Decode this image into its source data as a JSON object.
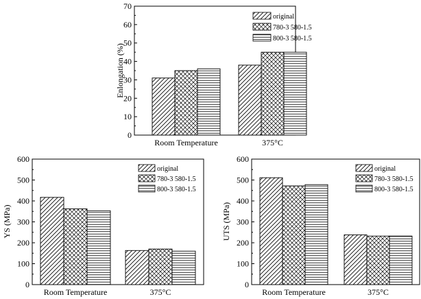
{
  "chart_data": [
    {
      "id": "enlongation",
      "type": "bar",
      "title": "",
      "xlabel": "",
      "ylabel": "Enlongation (%)",
      "ylim": [
        0,
        70
      ],
      "yticks": [
        0,
        10,
        20,
        30,
        40,
        50,
        60,
        70
      ],
      "categories": [
        "Room Temperature",
        "375°C"
      ],
      "series": [
        {
          "name": "original",
          "pattern": "diag",
          "values": [
            31,
            38
          ]
        },
        {
          "name": "780-3 580-1.5",
          "pattern": "cross",
          "values": [
            35,
            45
          ]
        },
        {
          "name": "800-3 580-1.5",
          "pattern": "horiz",
          "values": [
            36,
            45
          ]
        }
      ],
      "legend": "top-right"
    },
    {
      "id": "ys",
      "type": "bar",
      "title": "",
      "xlabel": "",
      "ylabel": "YS (MPa)",
      "ylim": [
        0,
        600
      ],
      "yticks": [
        0,
        100,
        200,
        300,
        400,
        500,
        600
      ],
      "categories": [
        "Room Temperature",
        "375°C"
      ],
      "series": [
        {
          "name": "original",
          "pattern": "diag",
          "values": [
            417,
            163
          ]
        },
        {
          "name": "780-3 580-1.5",
          "pattern": "cross",
          "values": [
            362,
            170
          ]
        },
        {
          "name": "800-3 580-1.5",
          "pattern": "horiz",
          "values": [
            353,
            160
          ]
        }
      ],
      "legend": "top-right"
    },
    {
      "id": "uts",
      "type": "bar",
      "title": "",
      "xlabel": "",
      "ylabel": "UTS (MPa)",
      "ylim": [
        0,
        600
      ],
      "yticks": [
        0,
        100,
        200,
        300,
        400,
        500,
        600
      ],
      "categories": [
        "Room Temperature",
        "375°C"
      ],
      "series": [
        {
          "name": "original",
          "pattern": "diag",
          "values": [
            511,
            238
          ]
        },
        {
          "name": "780-3 580-1.5",
          "pattern": "cross",
          "values": [
            472,
            232
          ]
        },
        {
          "name": "800-3 580-1.5",
          "pattern": "horiz",
          "values": [
            478,
            232
          ]
        }
      ],
      "legend": "top-right"
    }
  ]
}
